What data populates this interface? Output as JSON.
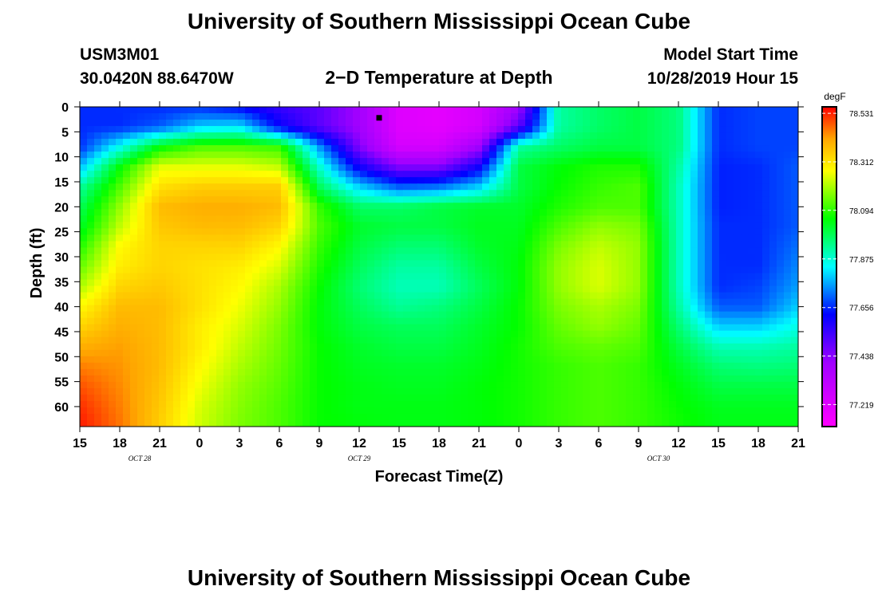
{
  "header": {
    "title": "University of Southern Mississippi Ocean Cube",
    "station_id": "USM3M01",
    "coordinates": "30.0420N 88.6470W",
    "plot_title": "2−D Temperature at Depth",
    "model_start_label": "Model Start Time",
    "model_start_value": "10/28/2019 Hour 15"
  },
  "footer": {
    "title": "University of Southern Mississippi Ocean Cube"
  },
  "chart_data": {
    "type": "heatmap",
    "title": "2−D Temperature at Depth",
    "xlabel": "Forecast Time(Z)",
    "ylabel": "Depth (ft)",
    "x_tick_labels": [
      "15",
      "18",
      "21",
      "0",
      "3",
      "6",
      "9",
      "12",
      "15",
      "18",
      "21",
      "0",
      "3",
      "6",
      "9",
      "12",
      "15",
      "18",
      "21"
    ],
    "x_tick_hours": [
      0,
      3,
      6,
      9,
      12,
      15,
      18,
      21,
      24,
      27,
      30,
      33,
      36,
      39,
      42,
      45,
      48,
      51,
      54
    ],
    "date_labels": [
      {
        "text": "OCT 28",
        "hour": 4.5
      },
      {
        "text": "OCT 29",
        "hour": 21
      },
      {
        "text": "OCT 30",
        "hour": 43.5
      }
    ],
    "y_ticks": [
      0,
      5,
      10,
      15,
      20,
      25,
      30,
      35,
      40,
      45,
      50,
      55,
      60
    ],
    "xlim_hours": [
      0,
      54
    ],
    "ylim": [
      0,
      64
    ],
    "colorbar": {
      "unit": "degF",
      "tick_labels": [
        "78.531",
        "78.312",
        "78.094",
        "77.875",
        "77.656",
        "77.438",
        "77.219"
      ],
      "min": 77.12,
      "max": 78.56
    },
    "marker": {
      "hour": 22.5,
      "depth": 2.2
    },
    "rows_depth": [
      0,
      4,
      8,
      12,
      16,
      20,
      24,
      28,
      32,
      36,
      40,
      44,
      48,
      52,
      56,
      60,
      64
    ],
    "cols_hour": [
      0,
      3,
      6,
      9,
      12,
      15,
      18,
      21,
      24,
      27,
      30,
      33,
      36,
      39,
      42,
      45,
      48,
      51,
      54
    ],
    "values": [
      [
        77.66,
        77.66,
        77.66,
        77.66,
        77.62,
        77.55,
        77.5,
        77.4,
        77.22,
        77.2,
        77.25,
        77.4,
        77.92,
        77.97,
        78.0,
        77.95,
        77.66,
        77.68,
        77.68
      ],
      [
        77.66,
        77.66,
        77.7,
        77.8,
        77.82,
        77.62,
        77.5,
        77.4,
        77.22,
        77.2,
        77.25,
        77.5,
        77.92,
        77.97,
        78.0,
        77.95,
        77.66,
        77.68,
        77.68
      ],
      [
        77.66,
        77.85,
        78.05,
        78.12,
        78.12,
        78.1,
        77.75,
        77.45,
        77.25,
        77.25,
        77.4,
        77.92,
        77.97,
        78.0,
        78.0,
        77.95,
        77.66,
        77.68,
        77.68
      ],
      [
        77.78,
        78.05,
        78.25,
        78.25,
        78.25,
        78.22,
        77.88,
        77.6,
        77.45,
        77.45,
        77.6,
        78.0,
        78.05,
        78.08,
        78.08,
        77.92,
        77.65,
        77.66,
        77.7
      ],
      [
        77.92,
        78.12,
        78.32,
        78.35,
        78.35,
        78.35,
        77.98,
        77.8,
        77.7,
        77.72,
        77.8,
        78.0,
        78.06,
        78.1,
        78.12,
        77.9,
        77.65,
        77.66,
        77.7
      ],
      [
        77.98,
        78.18,
        78.38,
        78.4,
        78.4,
        78.38,
        78.1,
        77.97,
        77.97,
        78.0,
        78.02,
        78.02,
        78.08,
        78.12,
        78.12,
        77.9,
        77.65,
        77.66,
        77.7
      ],
      [
        78.02,
        78.22,
        78.36,
        78.38,
        78.38,
        78.34,
        78.12,
        78.02,
        78.0,
        78.0,
        78.03,
        78.03,
        78.12,
        78.18,
        78.16,
        77.9,
        77.66,
        77.66,
        77.7
      ],
      [
        78.08,
        78.28,
        78.34,
        78.34,
        78.34,
        78.28,
        78.1,
        78.0,
        77.96,
        77.96,
        78.02,
        78.04,
        78.16,
        78.22,
        78.18,
        77.9,
        77.66,
        77.66,
        77.72
      ],
      [
        78.14,
        78.3,
        78.34,
        78.32,
        78.3,
        78.24,
        78.08,
        77.98,
        77.92,
        77.92,
        78.0,
        78.05,
        78.18,
        78.24,
        78.18,
        77.9,
        77.66,
        77.66,
        77.74
      ],
      [
        78.2,
        78.34,
        78.36,
        78.32,
        78.28,
        78.2,
        78.06,
        77.96,
        77.9,
        77.9,
        77.98,
        78.05,
        78.18,
        78.24,
        78.18,
        77.9,
        77.66,
        77.68,
        77.76
      ],
      [
        78.28,
        78.38,
        78.38,
        78.32,
        78.26,
        78.18,
        78.05,
        77.98,
        77.93,
        77.95,
        78.0,
        78.06,
        78.16,
        78.2,
        78.16,
        77.92,
        77.7,
        77.7,
        77.8
      ],
      [
        78.34,
        78.4,
        78.38,
        78.3,
        78.24,
        78.16,
        78.05,
        78.0,
        77.98,
        77.98,
        78.02,
        78.06,
        78.14,
        78.18,
        78.14,
        77.96,
        77.8,
        77.8,
        77.86
      ],
      [
        78.4,
        78.42,
        78.38,
        78.3,
        78.22,
        78.15,
        78.06,
        78.02,
        78.0,
        78.0,
        78.03,
        78.07,
        78.12,
        78.14,
        78.12,
        78.0,
        77.9,
        77.9,
        77.92
      ],
      [
        78.45,
        78.43,
        78.38,
        78.28,
        78.2,
        78.14,
        78.06,
        78.03,
        78.02,
        78.02,
        78.04,
        78.07,
        78.1,
        78.12,
        78.1,
        78.03,
        77.96,
        77.95,
        77.96
      ],
      [
        78.49,
        78.44,
        78.37,
        78.26,
        78.18,
        78.13,
        78.06,
        78.04,
        78.03,
        78.03,
        78.05,
        78.07,
        78.1,
        78.12,
        78.1,
        78.05,
        78.0,
        78.0,
        78.0
      ],
      [
        78.52,
        78.45,
        78.36,
        78.24,
        78.17,
        78.12,
        78.06,
        78.04,
        78.04,
        78.04,
        78.05,
        78.07,
        78.1,
        78.12,
        78.1,
        78.06,
        78.03,
        78.03,
        78.03
      ],
      [
        78.54,
        78.46,
        78.35,
        78.23,
        78.16,
        78.12,
        78.06,
        78.05,
        78.04,
        78.04,
        78.05,
        78.07,
        78.1,
        78.12,
        78.1,
        78.07,
        78.04,
        78.04,
        78.04
      ]
    ]
  }
}
